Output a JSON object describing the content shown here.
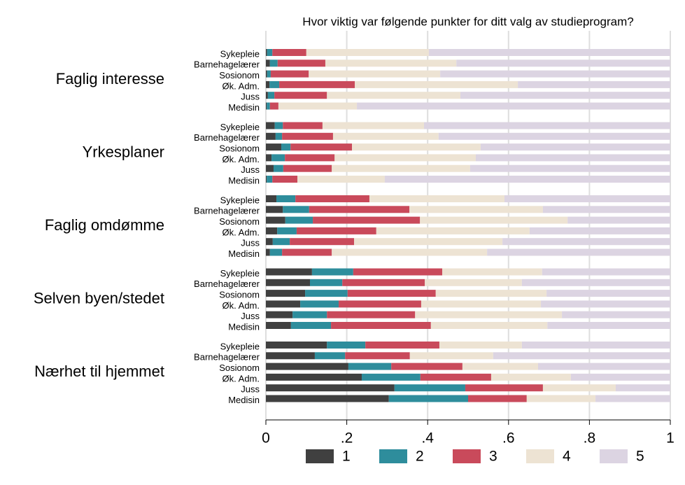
{
  "chart_data": {
    "type": "bar",
    "orientation": "horizontal",
    "stacked": true,
    "title": "Hvor viktig var følgende punkter for ditt valg av studieprogram?",
    "groups": [
      "Faglig interesse",
      "Yrkesplaner",
      "Faglig omdømme",
      "Selven byen/stedet",
      "Nærhet til hjemmet"
    ],
    "categories": [
      "Sykepleie",
      "Barnehagelærer",
      "Sosionom",
      "Øk. Adm.",
      "Juss",
      "Medisin"
    ],
    "xlim": [
      0,
      1
    ],
    "xticks": [
      0,
      {
        "value": 0.2,
        "label": ".2"
      },
      {
        "value": 0.4,
        "label": ".4"
      },
      {
        "value": 0.6,
        "label": ".6"
      },
      {
        "value": 0.8,
        "label": ".8"
      },
      1
    ],
    "grid": true,
    "legend": "bottom",
    "series": [
      {
        "name": "1",
        "color": "#404040",
        "values": [
          [
            0.003,
            0.01,
            0.003,
            0.009,
            0.005,
            0.002
          ],
          [
            0.022,
            0.024,
            0.038,
            0.014,
            0.019,
            0.002
          ],
          [
            0.026,
            0.042,
            0.048,
            0.028,
            0.017,
            0.01
          ],
          [
            0.114,
            0.109,
            0.097,
            0.085,
            0.066,
            0.062
          ],
          [
            0.151,
            0.121,
            0.204,
            0.237,
            0.318,
            0.304
          ]
        ]
      },
      {
        "name": "2",
        "color": "#2e8d9c",
        "values": [
          [
            0.013,
            0.019,
            0.009,
            0.024,
            0.016,
            0.008
          ],
          [
            0.02,
            0.016,
            0.023,
            0.033,
            0.024,
            0.014
          ],
          [
            0.047,
            0.065,
            0.068,
            0.048,
            0.042,
            0.03
          ],
          [
            0.102,
            0.08,
            0.105,
            0.095,
            0.085,
            0.099
          ],
          [
            0.095,
            0.075,
            0.106,
            0.145,
            0.175,
            0.196
          ]
        ]
      },
      {
        "name": "3",
        "color": "#c94a5b",
        "values": [
          [
            0.084,
            0.118,
            0.094,
            0.187,
            0.13,
            0.021
          ],
          [
            0.098,
            0.126,
            0.152,
            0.123,
            0.12,
            0.062
          ],
          [
            0.183,
            0.248,
            0.265,
            0.197,
            0.159,
            0.123
          ],
          [
            0.22,
            0.204,
            0.218,
            0.204,
            0.218,
            0.247
          ],
          [
            0.183,
            0.16,
            0.176,
            0.175,
            0.192,
            0.145
          ]
        ]
      },
      {
        "name": "4",
        "color": "#ede3d3",
        "values": [
          [
            0.303,
            0.324,
            0.325,
            0.403,
            0.33,
            0.194
          ],
          [
            0.251,
            0.261,
            0.318,
            0.349,
            0.342,
            0.216
          ],
          [
            0.334,
            0.33,
            0.365,
            0.379,
            0.367,
            0.384
          ],
          [
            0.247,
            0.24,
            0.274,
            0.296,
            0.363,
            0.288
          ],
          [
            0.204,
            0.206,
            0.187,
            0.197,
            0.18,
            0.17
          ]
        ]
      },
      {
        "name": "5",
        "color": "#dcd4e2",
        "values": [
          [
            0.597,
            0.529,
            0.569,
            0.377,
            0.519,
            0.775
          ],
          [
            0.609,
            0.573,
            0.469,
            0.481,
            0.495,
            0.706
          ],
          [
            0.41,
            0.315,
            0.254,
            0.348,
            0.415,
            0.453
          ],
          [
            0.317,
            0.367,
            0.306,
            0.32,
            0.268,
            0.304
          ],
          [
            0.367,
            0.438,
            0.327,
            0.246,
            0.135,
            0.185
          ]
        ]
      }
    ]
  }
}
